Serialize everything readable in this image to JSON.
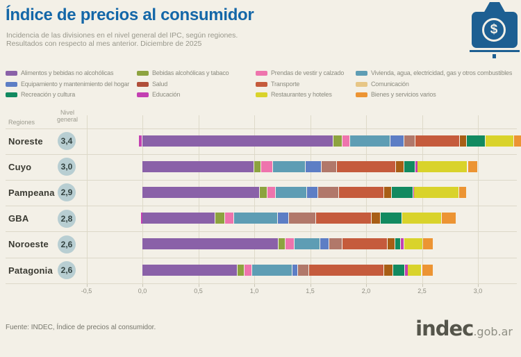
{
  "header": {
    "title": "Índice de precios al consumidor",
    "subtitle_line1": "Incidencia de las divisiones en el nivel general del IPC, según regiones.",
    "subtitle_line2": "Resultados con respecto al mes anterior. Diciembre de 2025"
  },
  "logo_tag": {
    "symbol": "$"
  },
  "table": {
    "regiones_label": "Regiones",
    "nivel_label_line1": "Nivel",
    "nivel_label_line2": "general"
  },
  "chart_data": {
    "type": "bar",
    "stacked": true,
    "orientation": "horizontal",
    "grid": true,
    "xlim": [
      -0.5,
      3.0
    ],
    "x_tick_values": [
      -0.5,
      0,
      0.5,
      1,
      1.5,
      2,
      2.5,
      3
    ],
    "x_tick_labels": [
      "-0,5",
      "0,0",
      "0,5",
      "1,0",
      "1,5",
      "2,0",
      "2,5",
      "3,0"
    ],
    "regions": [
      {
        "name": "Noreste",
        "nivel_general_label": "3,4",
        "nivel_general": 3.4
      },
      {
        "name": "Cuyo",
        "nivel_general_label": "3,0",
        "nivel_general": 3.0
      },
      {
        "name": "Pampeana",
        "nivel_general_label": "2,9",
        "nivel_general": 2.9
      },
      {
        "name": "GBA",
        "nivel_general_label": "2,8",
        "nivel_general": 2.8
      },
      {
        "name": "Noroeste",
        "nivel_general_label": "2,6",
        "nivel_general": 2.6
      },
      {
        "name": "Patagonia",
        "nivel_general_label": "2,6",
        "nivel_general": 2.6
      }
    ],
    "series": [
      {
        "key": "alimentos",
        "label": "Alimentos y bebidas no alcohólicas",
        "color": "#8a61a8",
        "values": [
          1.71,
          1.0,
          1.05,
          0.65,
          1.22,
          0.85
        ]
      },
      {
        "key": "bebidas_alcoholicas",
        "label": "Bebidas alcohólicas y tabaco",
        "color": "#8da33f",
        "values": [
          0.08,
          0.06,
          0.07,
          0.09,
          0.06,
          0.06
        ]
      },
      {
        "key": "prendas",
        "label": "Prendas de vestir y calzado",
        "color": "#ee74ad",
        "values": [
          0.07,
          0.11,
          0.07,
          0.08,
          0.08,
          0.07
        ]
      },
      {
        "key": "vivienda",
        "label": "Vivienda, agua, electricidad, gas y otros combustibles",
        "color": "#5e9db4",
        "values": [
          0.36,
          0.29,
          0.28,
          0.39,
          0.23,
          0.36
        ]
      },
      {
        "key": "equipamiento",
        "label": "Equipamiento y mantenimiento del hogar",
        "color": "#5d7ec5",
        "values": [
          0.12,
          0.14,
          0.1,
          0.1,
          0.08,
          0.05
        ]
      },
      {
        "key": "salud",
        "label": "Salud",
        "color": "#b04f3a",
        "bar_color": "#b1786a",
        "values": [
          0.1,
          0.14,
          0.19,
          0.24,
          0.12,
          0.1
        ]
      },
      {
        "key": "transporte",
        "label": "Transporte",
        "color": "#c55b3c",
        "values": [
          0.4,
          0.53,
          0.4,
          0.5,
          0.4,
          0.67
        ]
      },
      {
        "key": "comunicacion",
        "label": "Comunicación",
        "color": "#e7c686",
        "bar_color": "#a85e15",
        "values": [
          0.06,
          0.07,
          0.07,
          0.08,
          0.07,
          0.08
        ]
      },
      {
        "key": "recreacion",
        "label": "Recreación y cultura",
        "color": "#128a60",
        "values": [
          0.17,
          0.1,
          0.19,
          0.19,
          0.05,
          0.11
        ]
      },
      {
        "key": "educacion",
        "label": "Educación",
        "color": "#c340b2",
        "values": [
          -0.03,
          0.02,
          0.01,
          -0.01,
          0.03,
          0.02
        ]
      },
      {
        "key": "restaurantes",
        "label": "Restaurantes y hoteles",
        "color": "#d9d32b",
        "values": [
          0.25,
          0.45,
          0.4,
          0.36,
          0.17,
          0.13
        ]
      },
      {
        "key": "bienes",
        "label": "Bienes y servicios varios",
        "color": "#ec9433",
        "values": [
          0.11,
          0.09,
          0.07,
          0.13,
          0.09,
          0.1
        ]
      }
    ],
    "legend_columns": [
      [
        "alimentos",
        "equipamiento",
        "recreacion"
      ],
      [
        "bebidas_alcoholicas",
        "salud",
        "educacion"
      ],
      [
        "prendas",
        "transporte",
        "restaurantes"
      ],
      [
        "vivienda",
        "comunicacion",
        "bienes"
      ]
    ]
  },
  "footer": {
    "source": "Fuente: INDEC, Índice de precios al consumidor.",
    "brand": "indec",
    "brand_suffix": ".gob.ar"
  },
  "colors": {
    "title_blue": "#1467a8",
    "tag_blue": "#1d5f92",
    "badge_bg": "#b8ced2"
  }
}
